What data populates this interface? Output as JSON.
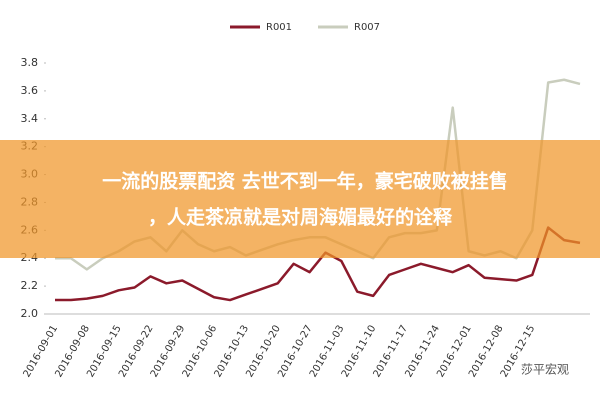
{
  "chart_data": {
    "type": "line",
    "categories": [
      "2016-09-01",
      null,
      "2016-09-08",
      null,
      "2016-09-15",
      null,
      "2016-09-22",
      null,
      "2016-09-29",
      null,
      "2016-10-06",
      null,
      "2016-10-13",
      null,
      "2016-10-20",
      null,
      "2016-10-27",
      null,
      "2016-11-03",
      null,
      "2016-11-10",
      null,
      "2016-11-17",
      null,
      "2016-11-24",
      null,
      "2016-12-01",
      null,
      "2016-12-08",
      null,
      "2016-12-15",
      null,
      null,
      null
    ],
    "series": [
      {
        "name": "R001",
        "color": "#8b1a2b",
        "values": [
          2.1,
          2.1,
          2.11,
          2.13,
          2.17,
          2.19,
          2.27,
          2.22,
          2.24,
          2.18,
          2.12,
          2.1,
          2.14,
          2.18,
          2.22,
          2.36,
          2.3,
          2.44,
          2.38,
          2.16,
          2.13,
          2.28,
          2.32,
          2.36,
          2.33,
          2.3,
          2.35,
          2.26,
          2.25,
          2.24,
          2.28,
          2.62,
          2.53,
          2.51
        ]
      },
      {
        "name": "R007",
        "color": "#c9cdbd",
        "values": [
          2.4,
          2.4,
          2.32,
          2.4,
          2.45,
          2.52,
          2.55,
          2.45,
          2.6,
          2.5,
          2.45,
          2.48,
          2.42,
          2.46,
          2.5,
          2.53,
          2.55,
          2.55,
          2.5,
          2.45,
          2.4,
          2.55,
          2.58,
          2.58,
          2.6,
          3.48,
          2.45,
          2.42,
          2.45,
          2.4,
          2.6,
          3.66,
          3.68,
          3.65
        ]
      }
    ],
    "ylim": [
      2.0,
      3.8
    ],
    "yticks": [
      {
        "value": 2,
        "label": "2.0"
      },
      2.2,
      2.4,
      2.6,
      2.8,
      {
        "value": 3,
        "label": "3.0"
      },
      3.2,
      3.4,
      3.6,
      3.8
    ],
    "grid": false
  },
  "overlay": {
    "lines": [
      "一流的股票配资 去世不到一年，豪宅破败被挂售",
      "，人走茶凉就是对周海媚最好的诠释"
    ]
  },
  "watermark": "莎平宏观"
}
